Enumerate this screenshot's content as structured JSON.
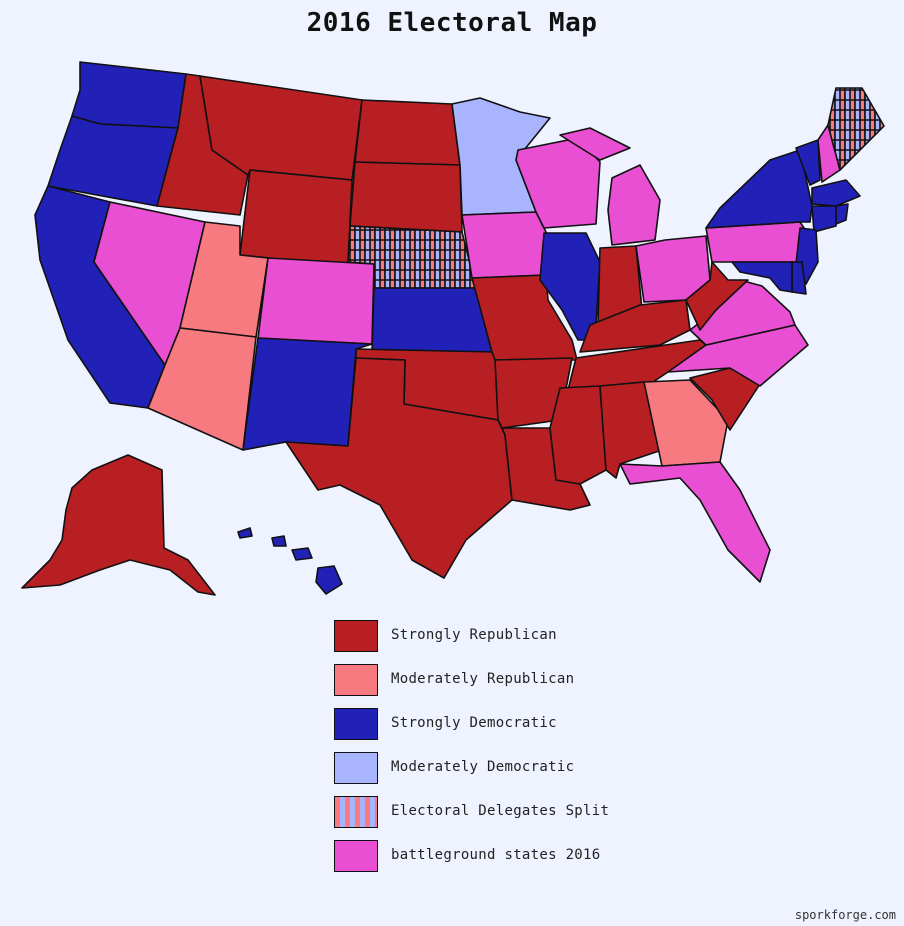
{
  "title": "2016 Electoral Map",
  "colors": {
    "strong_rep": "#b81f22",
    "mod_rep": "#f77a80",
    "strong_dem": "#2121b8",
    "mod_dem": "#a9b4ff",
    "split_a": "#f77a80",
    "split_b": "#a9b4ff",
    "battleground": "#e84fd2",
    "background": "#eef3ff"
  },
  "legend": [
    {
      "key": "strong_rep",
      "label": "Strongly Republican"
    },
    {
      "key": "mod_rep",
      "label": "Moderately Republican"
    },
    {
      "key": "strong_dem",
      "label": "Strongly Democratic"
    },
    {
      "key": "mod_dem",
      "label": "Moderately Democratic"
    },
    {
      "key": "split",
      "label": "Electoral Delegates Split"
    },
    {
      "key": "battleground",
      "label": "battleground states 2016"
    }
  ],
  "states": {
    "WA": "strong_dem",
    "OR": "strong_dem",
    "CA": "strong_dem",
    "NV": "battleground",
    "ID": "strong_rep",
    "MT": "strong_rep",
    "WY": "strong_rep",
    "UT": "mod_rep",
    "AZ": "mod_rep",
    "CO": "battleground",
    "NM": "strong_dem",
    "ND": "strong_rep",
    "SD": "strong_rep",
    "NE": "split",
    "KS": "strong_dem",
    "OK": "strong_rep",
    "TX": "strong_rep",
    "MN": "mod_dem",
    "IA": "battleground",
    "MO": "strong_rep",
    "AR": "strong_rep",
    "LA": "strong_rep",
    "WI": "battleground",
    "IL": "strong_dem",
    "MI": "battleground",
    "IN": "strong_rep",
    "OH": "battleground",
    "KY": "strong_rep",
    "TN": "strong_rep",
    "MS": "strong_rep",
    "AL": "strong_rep",
    "GA": "mod_rep",
    "FL": "battleground",
    "SC": "strong_rep",
    "NC": "battleground",
    "VA": "battleground",
    "WV": "strong_rep",
    "PA": "battleground",
    "NY": "strong_dem",
    "VT": "strong_dem",
    "NH": "battleground",
    "ME": "split",
    "MA": "strong_dem",
    "CT": "strong_dem",
    "RI": "strong_dem",
    "NJ": "strong_dem",
    "DE": "strong_dem",
    "MD": "strong_dem",
    "AK": "strong_rep",
    "HI": "strong_dem"
  },
  "credit": "sporkforge.com"
}
